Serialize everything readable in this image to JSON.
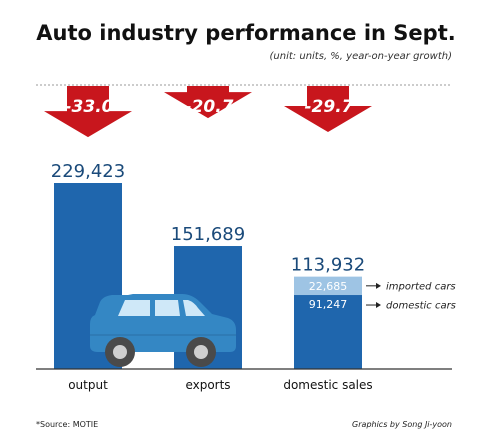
{
  "colors": {
    "bar": "#1f66ad",
    "imported": "#9ec4e4",
    "arrow": "#c8161d",
    "car_body": "#3487c4",
    "car_window": "#cfe8f8",
    "wheel": "#4a4a4a",
    "hub": "#cfcfcf"
  },
  "chart_data": {
    "type": "bar",
    "title": "Auto industry performance in Sept.",
    "subtitle": "(unit: units, %, year-on-year growth)",
    "categories": [
      "output",
      "exports",
      "domestic sales"
    ],
    "values": [
      229423,
      151689,
      113932
    ],
    "value_labels": [
      "229,423",
      "151,689",
      "113,932"
    ],
    "yoy_growth": [
      -33.0,
      -20.7,
      -29.7
    ],
    "yoy_labels": [
      "-33.0",
      "-20.7",
      "-29.7"
    ],
    "breakdown": {
      "category": "domestic sales",
      "segments": [
        {
          "name": "imported cars",
          "value": 22685,
          "label": "22,685"
        },
        {
          "name": "domestic cars",
          "value": 91247,
          "label": "91,247"
        }
      ]
    },
    "ylim": [
      0,
      240000
    ],
    "grid": false,
    "source": "*Source: MOTIE",
    "credit": "Graphics by Song Ji-yoon"
  }
}
